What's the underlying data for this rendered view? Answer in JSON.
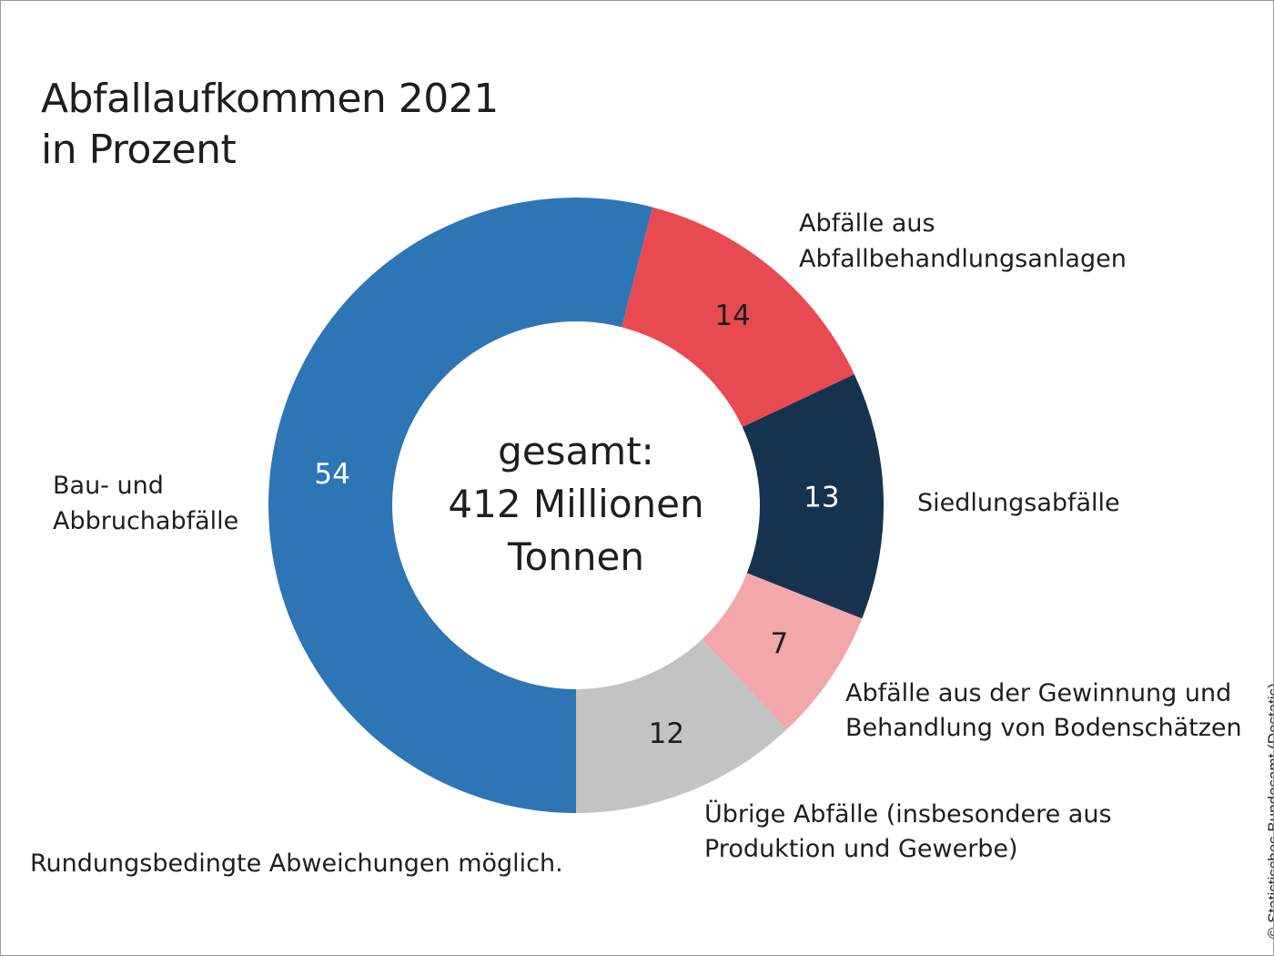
{
  "chart_data": {
    "type": "pie",
    "donut": true,
    "title": "Abfallaufkommen 2021",
    "subtitle": "in Prozent",
    "center_label": [
      "gesamt:",
      "412 Millionen",
      "Tonnen"
    ],
    "slices": [
      {
        "label": "Bau- und Abbruchabfälle",
        "label_lines": [
          "Bau- und",
          "Abbruchabfälle"
        ],
        "value": 54,
        "color": "#2e75b6",
        "value_color": "#ffffff"
      },
      {
        "label": "Abfälle aus Abfallbehandlungsanlagen",
        "label_lines": [
          "Abfälle aus",
          "Abfallbehandlungsanlagen"
        ],
        "value": 14,
        "color": "#e84a52",
        "value_color": "#1e1e1e"
      },
      {
        "label": "Siedlungsabfälle",
        "label_lines": [
          "Siedlungsabfälle"
        ],
        "value": 13,
        "color": "#17324f",
        "value_color": "#ffffff"
      },
      {
        "label": "Abfälle aus der Gewinnung und Behandlung von Bodenschätzen",
        "label_lines": [
          "Abfälle aus der Gewinnung und",
          "Behandlung von Bodenschätzen"
        ],
        "value": 7,
        "color": "#f2a7aa",
        "value_color": "#1e1e1e"
      },
      {
        "label": "Übrige Abfälle (insbesondere aus Produktion und Gewerbe)",
        "label_lines": [
          "Übrige Abfälle (insbesondere aus",
          "Produktion und Gewerbe)"
        ],
        "value": 12,
        "color": "#c3c3c3",
        "value_color": "#1e1e1e"
      }
    ],
    "note": "Rundungsbedingte Abweichungen möglich.",
    "source": "© Statistisches Bundesamt (Destatis)"
  }
}
